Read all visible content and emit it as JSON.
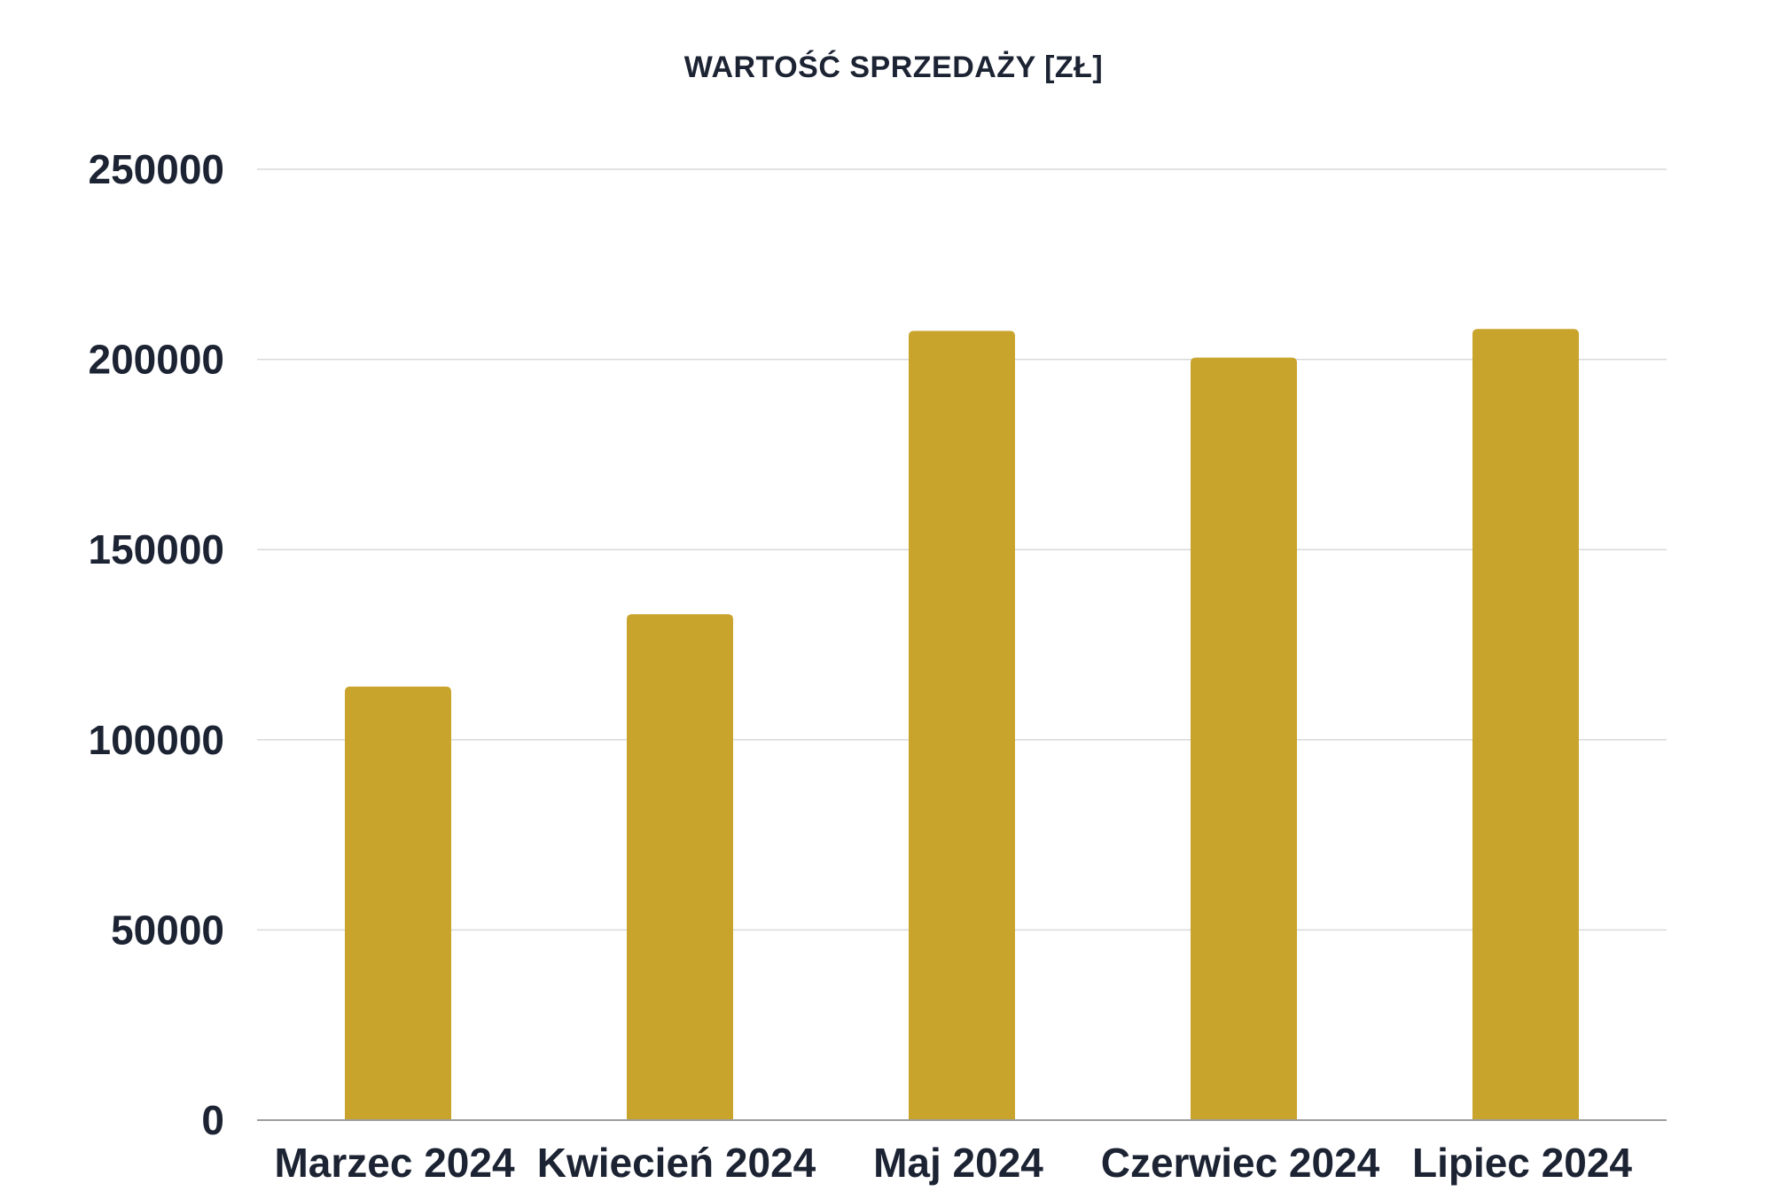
{
  "chart_data": {
    "type": "bar",
    "title": "WARTOŚĆ SPRZEDAŻY [ZŁ]",
    "xlabel": "",
    "ylabel": "",
    "categories": [
      "Marzec 2024",
      "Kwiecień 2024",
      "Maj 2024",
      "Czerwiec 2024",
      "Lipiec 2024"
    ],
    "values": [
      114000,
      133000,
      207500,
      200500,
      208000
    ],
    "ylim": [
      0,
      250000
    ],
    "yticks": [
      "0",
      "50000",
      "100000",
      "150000",
      "200000",
      "250000"
    ],
    "grid": true,
    "legend": "none",
    "colors": {
      "bar": "#C9A42C",
      "text": "#1C2333",
      "grid": "#D9D9D9",
      "axis": "#9E9E9E"
    }
  }
}
